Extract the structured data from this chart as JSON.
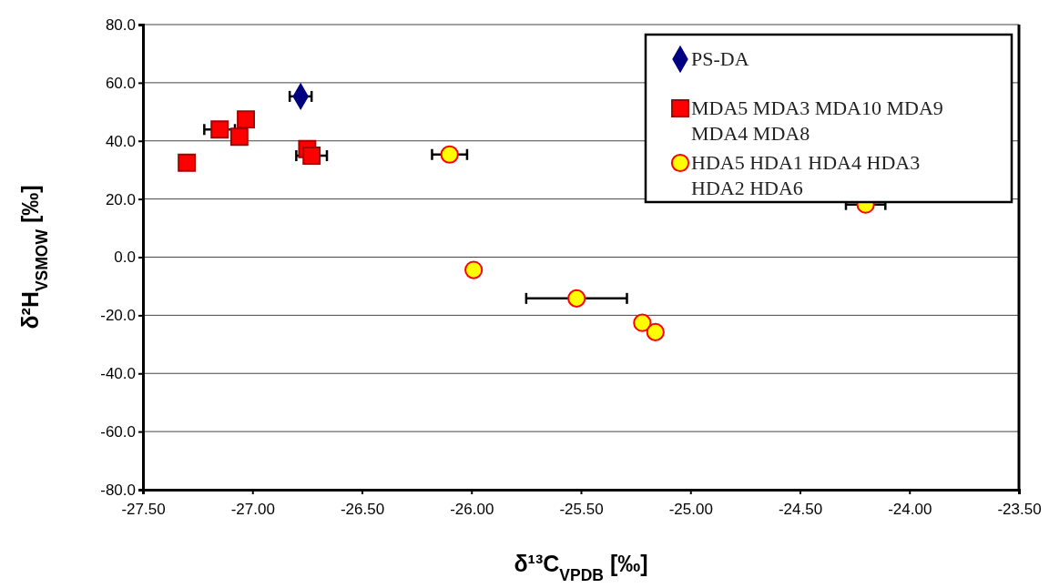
{
  "chart_data": {
    "type": "scatter",
    "xlabel": "δ¹³C$_{VPDB}$ [‰]",
    "ylabel": "δ²H$_{VSMOW}$ [‰]",
    "xlim": [
      -27.5,
      -23.5
    ],
    "ylim": [
      -80,
      80
    ],
    "xticks": [
      {
        "value": -27.5,
        "label": "-27.50"
      },
      {
        "value": -27,
        "label": "-27.00"
      },
      {
        "value": -26.5,
        "label": "-26.50"
      },
      {
        "value": -26,
        "label": "-26.00"
      },
      {
        "value": -25.5,
        "label": "-25.50"
      },
      {
        "value": -25,
        "label": "-25.00"
      },
      {
        "value": -24.5,
        "label": "-24.50"
      },
      {
        "value": -24,
        "label": "-24.00"
      },
      {
        "value": -23.5,
        "label": "-23.50"
      }
    ],
    "yticks": [
      {
        "value": -80,
        "label": "-80.0"
      },
      {
        "value": -60,
        "label": "-60.0"
      },
      {
        "value": -40,
        "label": "-40.0"
      },
      {
        "value": -20,
        "label": "-20.0"
      },
      {
        "value": 0,
        "label": "0.0"
      },
      {
        "value": 20,
        "label": "20.0"
      },
      {
        "value": 40,
        "label": "40.0"
      },
      {
        "value": 60,
        "label": "60.0"
      },
      {
        "value": 80,
        "label": "80.0"
      }
    ],
    "grid": "y",
    "legend": "top right",
    "series": [
      {
        "name": "PS-DA",
        "color": "#000080",
        "marker": "diamond",
        "x": [
          -26.78
        ],
        "values": [
          55.3
        ],
        "xerrors": [
          0.05
        ]
      },
      {
        "name": "MDA5 MDA3 MDA10 MDA9 MDA4 MDA8",
        "color": "#ff0000",
        "marker": "square",
        "x": [
          -27.3,
          -27.15,
          -27.03,
          -27.06,
          -26.75,
          -26.73
        ],
        "values": [
          32.5,
          43.9,
          47.4,
          41.4,
          37.2,
          34.9
        ],
        "xerrors": [
          null,
          0.07,
          null,
          null,
          null,
          0.07
        ]
      },
      {
        "name": "HDA5 HDA1 HDA4 HDA3 HDA2 HDA6",
        "color": "#ffff00",
        "marker": "circle",
        "x": [
          -26.1,
          -25.99,
          -25.52,
          -25.22,
          -25.16,
          -24.2
        ],
        "values": [
          35.3,
          -4.4,
          -14.2,
          -22.6,
          -25.8,
          18.1
        ],
        "xerrors": [
          0.08,
          null,
          0.23,
          null,
          null,
          0.09
        ]
      }
    ]
  }
}
